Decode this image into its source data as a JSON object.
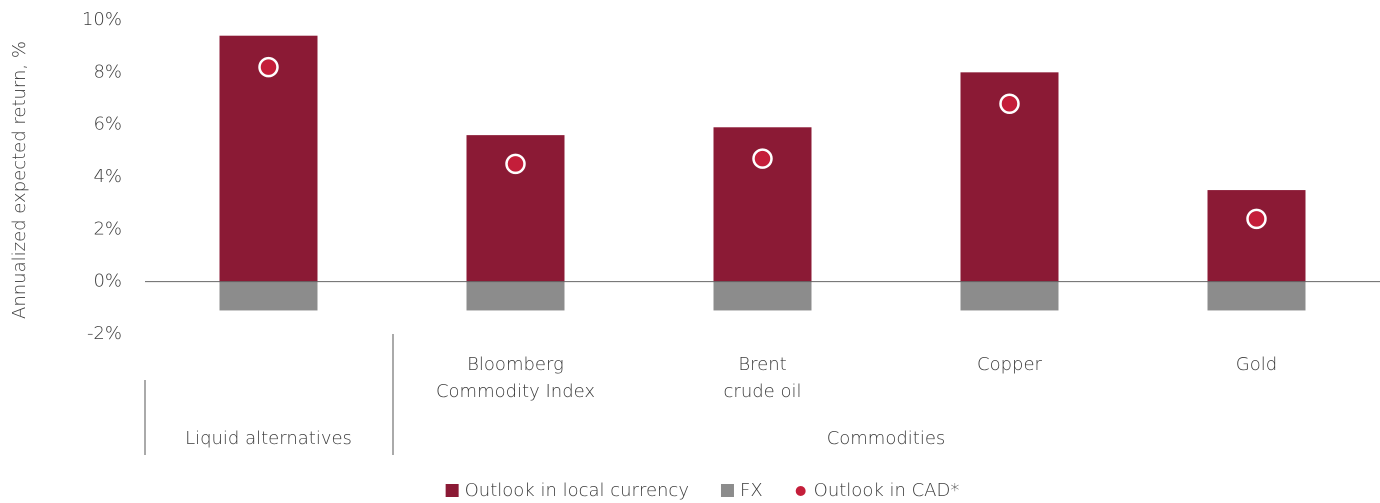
{
  "chart_data": {
    "type": "bar",
    "y_label": "Annualized expected return, %",
    "groups": [
      {
        "name": "Liquid alternatives",
        "categories": [
          null
        ]
      },
      {
        "name": "Commodities",
        "categories": [
          [
            "Bloomberg",
            "Commodity Index"
          ],
          [
            "Brent",
            "crude oil"
          ],
          [
            "Copper"
          ],
          [
            "Gold"
          ]
        ]
      }
    ],
    "series": [
      {
        "name": "Outlook in local currency",
        "color": "#8b1a35",
        "marker": "bar",
        "values": [
          9.4,
          5.6,
          5.9,
          8.0,
          3.5
        ]
      },
      {
        "name": "FX",
        "color": "#8c8c8c",
        "marker": "bar",
        "values": [
          -1.1,
          -1.1,
          -1.1,
          -1.1,
          -1.1
        ]
      },
      {
        "name": "Outlook in CAD*",
        "color": "#c41e3a",
        "marker": "dot",
        "values": [
          8.2,
          4.5,
          4.7,
          6.8,
          2.4
        ]
      }
    ],
    "ylim": [
      -2,
      10
    ],
    "yticks": [
      {
        "value": -2,
        "label": "-2%"
      },
      {
        "value": 0,
        "label": "0%"
      },
      {
        "value": 2,
        "label": "2%"
      },
      {
        "value": 4,
        "label": "4%"
      },
      {
        "value": 6,
        "label": "6%"
      },
      {
        "value": 8,
        "label": "8%"
      },
      {
        "value": 10,
        "label": "10%"
      }
    ],
    "legend": "bottom"
  }
}
